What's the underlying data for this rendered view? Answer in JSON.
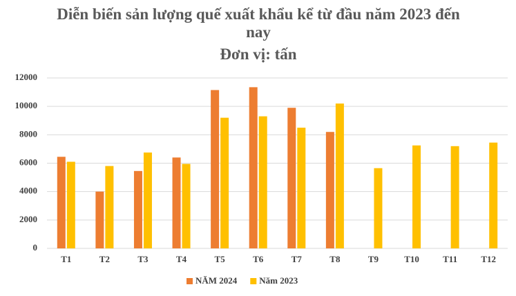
{
  "chart_data": {
    "type": "bar",
    "title": "Diễn biến sản lượng quế xuất khẩu kể từ đầu năm 2023 đến nay",
    "subtitle": "Đơn vị: tấn",
    "categories": [
      "T1",
      "T2",
      "T3",
      "T4",
      "T5",
      "T6",
      "T7",
      "T8",
      "T9",
      "T10",
      "T11",
      "T12"
    ],
    "series": [
      {
        "name": "NĂM 2024",
        "color": "#ED7D31",
        "values": [
          6450,
          4000,
          5450,
          6400,
          11150,
          11350,
          9900,
          8200,
          null,
          null,
          null,
          null
        ]
      },
      {
        "name": "Năm 2023",
        "color": "#FFC000",
        "values": [
          6100,
          5800,
          6750,
          5950,
          9200,
          9300,
          8500,
          10200,
          5650,
          7250,
          7200,
          7450
        ]
      }
    ],
    "ylim": [
      0,
      12000
    ],
    "yticks": [
      0,
      2000,
      4000,
      6000,
      8000,
      10000,
      12000
    ],
    "grid": true,
    "legend": "bottom"
  }
}
